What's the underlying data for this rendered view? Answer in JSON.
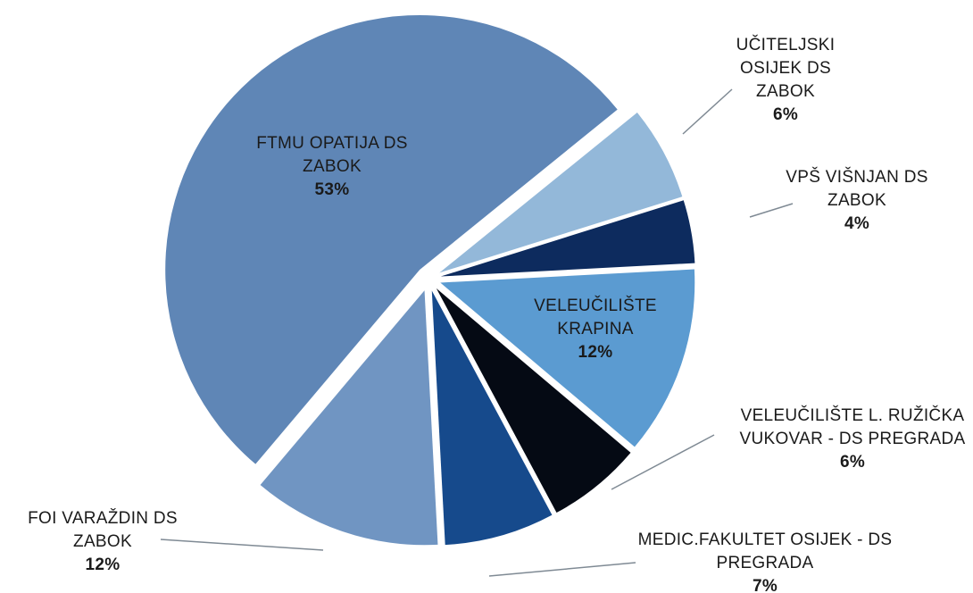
{
  "chart_data": {
    "type": "pie",
    "start_angle": 51,
    "categories": [
      "UČITELJSKI OSIJEK DS ZABOK",
      "VPŠ VIŠNJAN DS ZABOK",
      "VELEUČILIŠTE KRAPINA",
      "VELEUČILIŠTE L. RUŽIČKA VUKOVAR - DS PREGRADA",
      "MEDIC.FAKULTET OSIJEK - DS PREGRADA",
      "FOI VARAŽDIN DS ZABOK",
      "FTMU OPATIJA DS ZABOK"
    ],
    "values": [
      6,
      4,
      12,
      6,
      7,
      12,
      53
    ],
    "value_labels": [
      "6%",
      "4%",
      "12%",
      "6%",
      "7%",
      "12%",
      "53%"
    ],
    "colors": [
      "#93b8d9",
      "#0d2b5e",
      "#5b9bd1",
      "#050a14",
      "#164a8c",
      "#7095c2",
      "#5f86b6"
    ]
  }
}
